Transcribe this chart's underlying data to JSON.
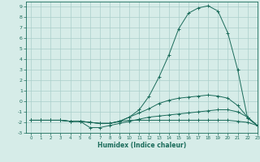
{
  "xlabel": "Humidex (Indice chaleur)",
  "bg_color": "#d6ece8",
  "grid_color": "#aacfca",
  "line_color": "#1a6b5a",
  "xlim": [
    -0.5,
    23
  ],
  "ylim": [
    -3,
    9.5
  ],
  "xticks": [
    0,
    1,
    2,
    3,
    4,
    5,
    6,
    7,
    8,
    9,
    10,
    11,
    12,
    13,
    14,
    15,
    16,
    17,
    18,
    19,
    20,
    21,
    22,
    23
  ],
  "yticks": [
    -3,
    -2,
    -1,
    0,
    1,
    2,
    3,
    4,
    5,
    6,
    7,
    8,
    9
  ],
  "series": [
    {
      "x": [
        0,
        1,
        2,
        3,
        4,
        5,
        6,
        7,
        8,
        9,
        10,
        11,
        12,
        13,
        14,
        15,
        16,
        17,
        18,
        19,
        20,
        21,
        22,
        23
      ],
      "y": [
        -1.8,
        -1.8,
        -1.8,
        -1.8,
        -1.9,
        -1.9,
        -2.0,
        -2.1,
        -2.1,
        -1.9,
        -1.5,
        -0.8,
        0.5,
        2.3,
        4.4,
        6.9,
        8.4,
        8.9,
        9.1,
        8.6,
        6.5,
        3.0,
        -1.6,
        -2.3
      ]
    },
    {
      "x": [
        0,
        1,
        2,
        3,
        4,
        5,
        6,
        7,
        8,
        9,
        10,
        11,
        12,
        13,
        14,
        15,
        16,
        17,
        18,
        19,
        20,
        21,
        22,
        23
      ],
      "y": [
        -1.8,
        -1.8,
        -1.8,
        -1.8,
        -1.9,
        -1.9,
        -2.0,
        -2.1,
        -2.1,
        -1.9,
        -1.5,
        -1.1,
        -0.7,
        -0.2,
        0.1,
        0.3,
        0.4,
        0.5,
        0.6,
        0.5,
        0.3,
        -0.4,
        -1.5,
        -2.3
      ]
    },
    {
      "x": [
        0,
        1,
        2,
        3,
        4,
        5,
        6,
        7,
        8,
        9,
        10,
        11,
        12,
        13,
        14,
        15,
        16,
        17,
        18,
        19,
        20,
        21,
        22,
        23
      ],
      "y": [
        -1.8,
        -1.8,
        -1.8,
        -1.8,
        -1.9,
        -1.9,
        -2.5,
        -2.5,
        -2.3,
        -2.1,
        -1.9,
        -1.7,
        -1.5,
        -1.4,
        -1.3,
        -1.2,
        -1.1,
        -1.0,
        -0.9,
        -0.8,
        -0.8,
        -1.0,
        -1.5,
        -2.3
      ]
    },
    {
      "x": [
        0,
        1,
        2,
        3,
        4,
        5,
        6,
        7,
        8,
        9,
        10,
        11,
        12,
        13,
        14,
        15,
        16,
        17,
        18,
        19,
        20,
        21,
        22,
        23
      ],
      "y": [
        -1.8,
        -1.8,
        -1.8,
        -1.8,
        -1.9,
        -1.9,
        -2.0,
        -2.1,
        -2.1,
        -1.9,
        -1.8,
        -1.8,
        -1.8,
        -1.8,
        -1.8,
        -1.8,
        -1.8,
        -1.8,
        -1.8,
        -1.8,
        -1.8,
        -1.9,
        -2.0,
        -2.3
      ]
    }
  ]
}
